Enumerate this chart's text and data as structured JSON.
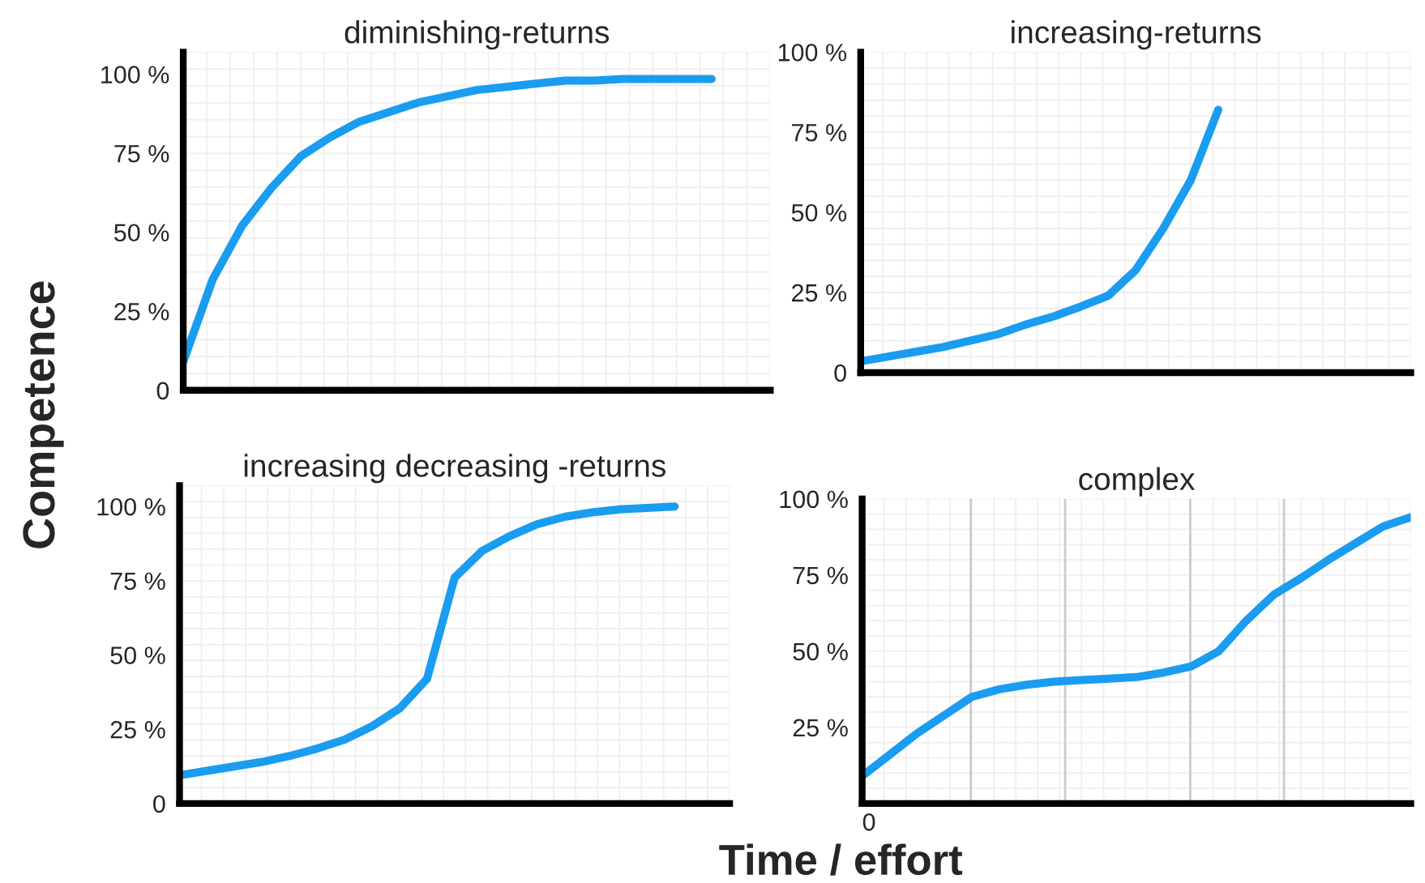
{
  "chart_data": [
    {
      "type": "line",
      "title": "diminishing-returns",
      "ylabel": "Competence",
      "categories": [
        null,
        null,
        null,
        null,
        null,
        null,
        null,
        null,
        null,
        null,
        null,
        null,
        null,
        null,
        null,
        null,
        null,
        null,
        null,
        null,
        null
      ],
      "ylim": [
        0,
        107
      ],
      "yticks": [
        0,
        {
          "value": 25,
          "label": "25 %"
        },
        {
          "value": 50,
          "label": "50 %"
        },
        {
          "value": 75,
          "label": "75 %"
        },
        {
          "value": 100,
          "label": "100 %"
        }
      ],
      "tick_labels": "y",
      "grid": true,
      "series": [
        {
          "color": "#1a9cf0",
          "values": [
            9,
            35,
            52,
            64,
            74,
            80,
            85,
            88,
            91,
            93,
            95,
            96,
            97,
            98,
            98,
            98.5,
            98.5,
            98.5,
            98.5,
            null,
            null
          ]
        }
      ]
    },
    {
      "type": "line",
      "title": "increasing-returns",
      "categories": [
        null,
        null,
        null,
        null,
        null,
        null,
        null,
        null,
        null,
        null,
        null,
        null,
        null,
        null,
        null,
        null,
        null,
        null,
        null,
        null,
        null
      ],
      "ylim": [
        0,
        100
      ],
      "yticks": [
        0,
        {
          "value": 25,
          "label": "25 %"
        },
        {
          "value": 50,
          "label": "50 %"
        },
        {
          "value": 75,
          "label": "75 %"
        },
        {
          "value": 100,
          "label": "100 %"
        }
      ],
      "tick_labels": "y",
      "grid": true,
      "series": [
        {
          "color": "#1a9cf0",
          "values": [
            3.5,
            5,
            6.5,
            8,
            10,
            12,
            15,
            17.5,
            20.6,
            24,
            32,
            45,
            60,
            82,
            null,
            null,
            null,
            null,
            null,
            null,
            null
          ]
        }
      ]
    },
    {
      "type": "line",
      "title": "increasing decreasing -returns",
      "xlabel": "Time / effort",
      "categories": [
        null,
        null,
        null,
        null,
        null,
        null,
        null,
        null,
        null,
        null,
        null,
        null,
        null,
        null,
        null,
        null,
        null,
        null,
        null,
        null,
        null
      ],
      "ylim": [
        0,
        107
      ],
      "yticks": [
        0,
        {
          "value": 25,
          "label": "25 %"
        },
        {
          "value": 50,
          "label": "50 %"
        },
        {
          "value": 75,
          "label": "75 %"
        },
        {
          "value": 100,
          "label": "100 %"
        }
      ],
      "tick_labels": "y",
      "grid": true,
      "series": [
        {
          "color": "#1a9cf0",
          "values": [
            9.5,
            11,
            12.5,
            14,
            16,
            18.5,
            21.5,
            26,
            32,
            42,
            76,
            85,
            90,
            94,
            96.5,
            98,
            99,
            99.5,
            100,
            null,
            null
          ]
        }
      ]
    },
    {
      "type": "line",
      "title": "complex",
      "annotations": [
        "0"
      ],
      "categories": [
        null,
        null,
        null,
        null,
        null,
        null,
        null,
        null,
        null,
        null,
        null,
        null,
        null,
        null,
        null,
        null,
        null,
        null,
        null,
        null,
        null
      ],
      "ylim": [
        0,
        100
      ],
      "yticks": [
        {
          "value": 25,
          "label": "25 %"
        },
        {
          "value": 50,
          "label": "50 %"
        },
        {
          "value": 75,
          "label": "75 %"
        },
        {
          "value": 100,
          "label": "100 %"
        }
      ],
      "tick_labels": "y",
      "grid": true,
      "series": [
        {
          "color": "#1a9cf0",
          "values": [
            9,
            16,
            23,
            29,
            35,
            37.5,
            39,
            40,
            40.5,
            41,
            41.5,
            43,
            45,
            50,
            60,
            68.5,
            74,
            80,
            85.5,
            91,
            94
          ]
        }
      ]
    }
  ]
}
